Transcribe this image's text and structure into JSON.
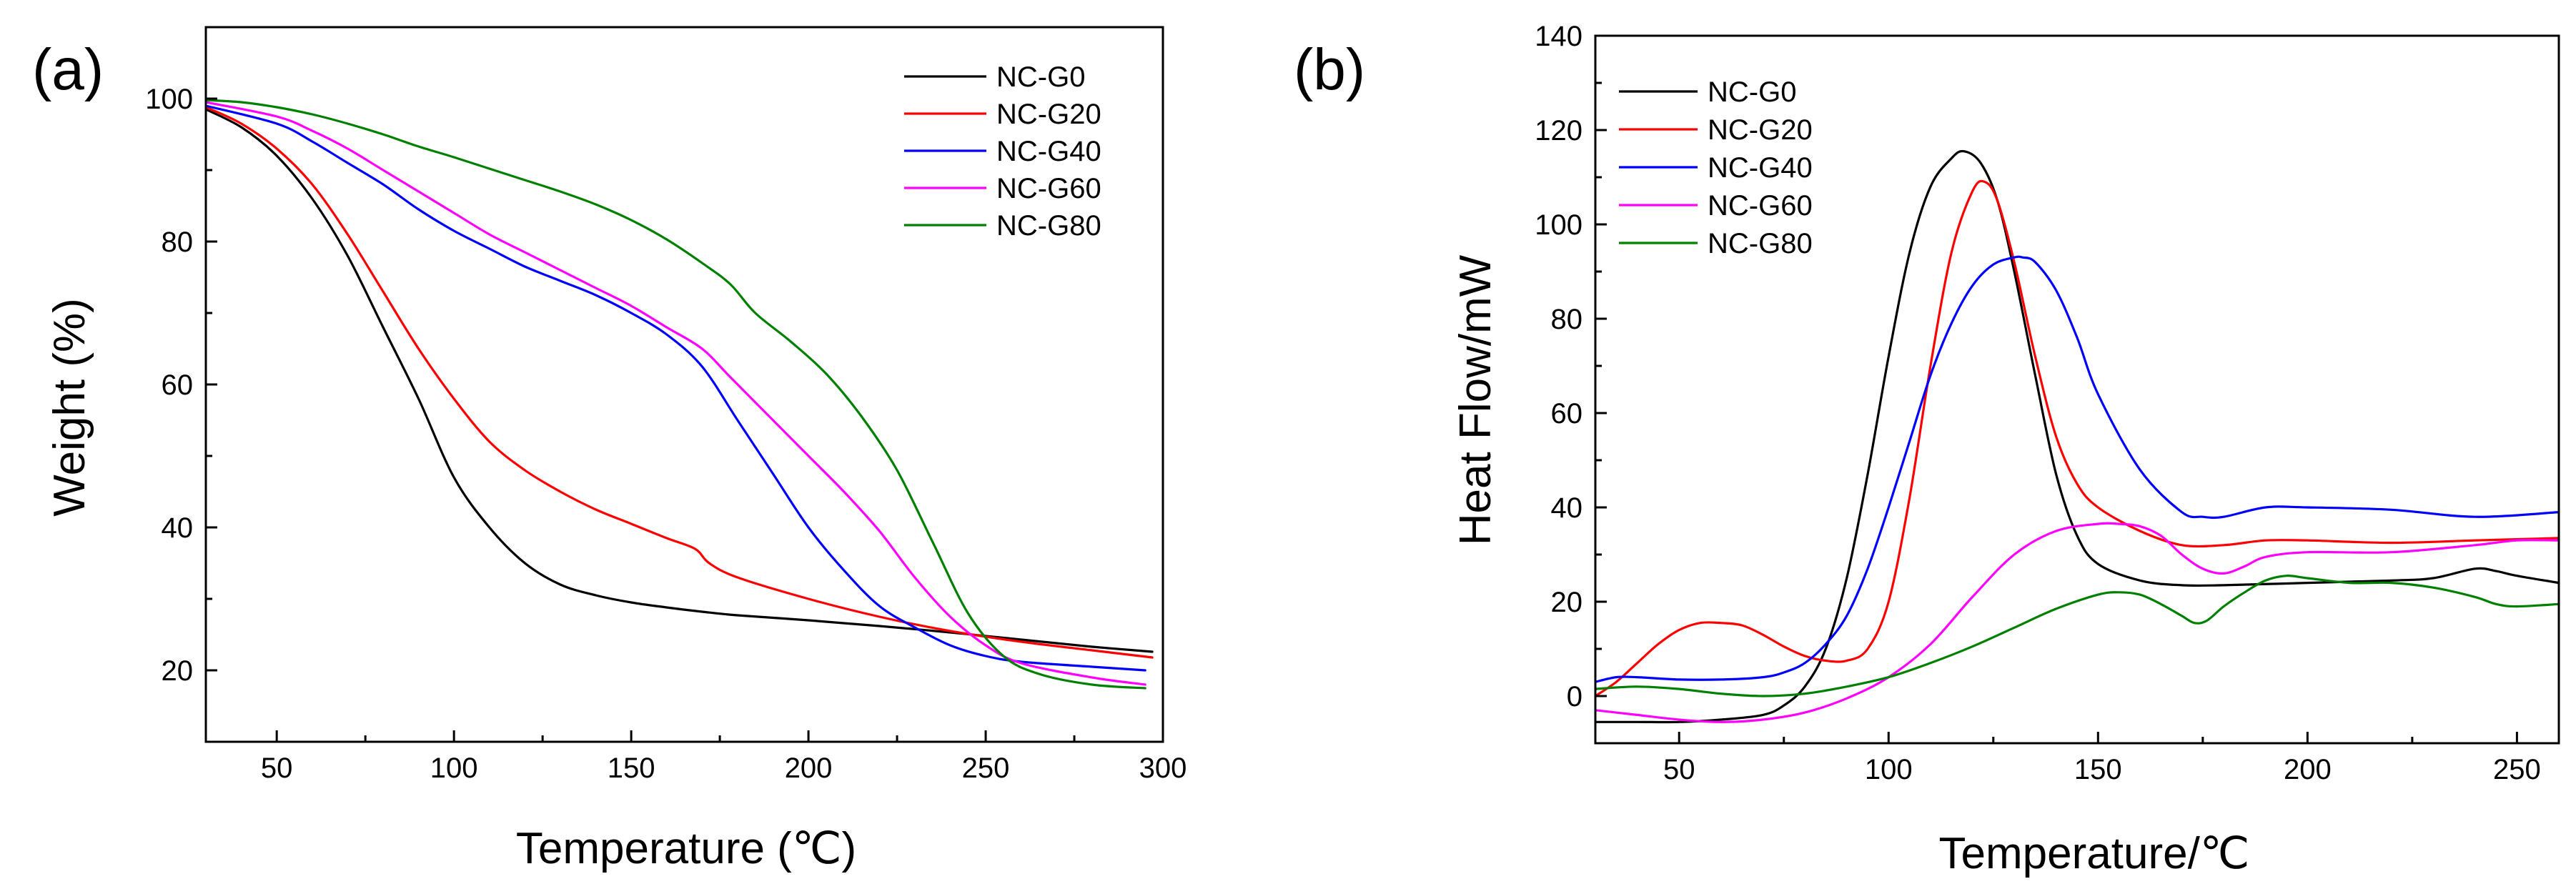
{
  "chart_data": [
    {
      "type": "line",
      "panel_label": "(a)",
      "title": "",
      "xlabel": "Temperature (℃)",
      "ylabel": "Weight (%)",
      "xlim": [
        30,
        300
      ],
      "ylim": [
        10,
        110
      ],
      "xticks": [
        50,
        100,
        150,
        200,
        250,
        300
      ],
      "yticks": [
        20,
        40,
        60,
        80,
        100
      ],
      "legend_position": "top-right",
      "series": [
        {
          "name": "NC-G0",
          "color": "#000000",
          "x": [
            30,
            40,
            50,
            60,
            70,
            80,
            90,
            100,
            110,
            120,
            130,
            140,
            150,
            160,
            170,
            180,
            200,
            220,
            240,
            260,
            280,
            297
          ],
          "y": [
            98.5,
            96,
            92,
            86,
            78,
            68,
            58,
            47,
            40,
            35,
            32,
            30.5,
            29.5,
            28.8,
            28.2,
            27.7,
            27,
            26.2,
            25.3,
            24.3,
            23.3,
            22.6
          ]
        },
        {
          "name": "NC-G20",
          "color": "#ff0000",
          "x": [
            30,
            40,
            50,
            60,
            70,
            80,
            90,
            100,
            110,
            120,
            130,
            140,
            150,
            160,
            168,
            172,
            180,
            200,
            220,
            240,
            260,
            280,
            297
          ],
          "y": [
            98.8,
            96.5,
            93,
            88,
            81,
            73,
            65,
            58,
            52,
            48,
            45,
            42.5,
            40.5,
            38.5,
            37,
            35,
            33,
            30,
            27.5,
            25.5,
            24,
            22.8,
            21.8
          ]
        },
        {
          "name": "NC-G40",
          "color": "#0000ff",
          "x": [
            30,
            50,
            60,
            70,
            80,
            90,
            100,
            110,
            120,
            130,
            140,
            150,
            160,
            170,
            180,
            190,
            200,
            210,
            220,
            230,
            240,
            250,
            260,
            280,
            295
          ],
          "y": [
            99,
            96.5,
            94,
            91,
            88,
            84.5,
            81.5,
            79,
            76.5,
            74.5,
            72.5,
            70,
            67,
            62.5,
            55,
            47.5,
            40,
            34,
            29,
            26,
            23.5,
            22,
            21.2,
            20.5,
            20
          ]
        },
        {
          "name": "NC-G60",
          "color": "#ff00ff",
          "x": [
            30,
            50,
            60,
            70,
            80,
            90,
            100,
            110,
            120,
            130,
            140,
            150,
            160,
            170,
            178,
            190,
            200,
            210,
            220,
            230,
            240,
            250,
            260,
            280,
            295
          ],
          "y": [
            99.5,
            97.5,
            95.5,
            93,
            90,
            87,
            84,
            81,
            78.5,
            76,
            73.5,
            71,
            68,
            65,
            61,
            55,
            50,
            45,
            39.5,
            33,
            27.5,
            23.5,
            21,
            19,
            18
          ]
        },
        {
          "name": "NC-G80",
          "color": "#008000",
          "x": [
            30,
            40,
            50,
            60,
            70,
            80,
            90,
            100,
            110,
            120,
            130,
            140,
            150,
            160,
            170,
            178,
            185,
            195,
            205,
            215,
            225,
            235,
            245,
            255,
            265,
            280,
            295
          ],
          "y": [
            99.8,
            99.5,
            98.8,
            97.8,
            96.5,
            95,
            93.3,
            91.8,
            90.2,
            88.6,
            87,
            85.2,
            83,
            80.3,
            77,
            74,
            70,
            66,
            61.5,
            55.5,
            48,
            38,
            28,
            22,
            19.5,
            18,
            17.5
          ]
        }
      ]
    },
    {
      "type": "line",
      "panel_label": "(b)",
      "title": "",
      "xlabel": "Temperature/℃",
      "ylabel": "Heat Flow/mW",
      "xlim": [
        30,
        260
      ],
      "ylim": [
        -10,
        140
      ],
      "xticks": [
        50,
        100,
        150,
        200,
        250
      ],
      "yticks": [
        0,
        20,
        40,
        60,
        80,
        100,
        120,
        140
      ],
      "legend_position": "top-left",
      "series": [
        {
          "name": "NC-G0",
          "color": "#000000",
          "x": [
            30,
            40,
            50,
            60,
            70,
            75,
            80,
            85,
            90,
            95,
            100,
            105,
            110,
            115,
            118,
            122,
            126,
            130,
            135,
            140,
            145,
            150,
            160,
            170,
            180,
            200,
            220,
            230,
            240,
            245,
            250,
            260
          ],
          "y": [
            -5.5,
            -5.5,
            -5.5,
            -5,
            -4,
            -2,
            2,
            10,
            25,
            47,
            72,
            94,
            108,
            114,
            115.5,
            113,
            105,
            90,
            68,
            47,
            34,
            28,
            24.5,
            23.5,
            23.5,
            24,
            24.5,
            25,
            27,
            26.5,
            25.5,
            24
          ]
        },
        {
          "name": "NC-G20",
          "color": "#ff0000",
          "x": [
            30,
            35,
            40,
            45,
            50,
            55,
            60,
            65,
            70,
            75,
            80,
            85,
            90,
            95,
            100,
            105,
            110,
            115,
            120,
            123,
            126,
            130,
            135,
            140,
            145,
            150,
            160,
            170,
            180,
            190,
            200,
            220,
            240,
            260
          ],
          "y": [
            0,
            3,
            7,
            11,
            14,
            15.5,
            15.5,
            15,
            13,
            10.5,
            8.5,
            7.5,
            7.5,
            10,
            20,
            42,
            70,
            94,
            107,
            109,
            105,
            92,
            72,
            55,
            45,
            40,
            35,
            32,
            32,
            33,
            33,
            32.5,
            33,
            33.5
          ]
        },
        {
          "name": "NC-G40",
          "color": "#0000ff",
          "x": [
            30,
            35,
            40,
            50,
            60,
            70,
            75,
            80,
            85,
            90,
            95,
            100,
            105,
            110,
            115,
            120,
            125,
            130,
            132,
            135,
            140,
            145,
            150,
            160,
            170,
            175,
            180,
            190,
            200,
            220,
            240,
            260
          ],
          "y": [
            3,
            4,
            4,
            3.5,
            3.5,
            4,
            5,
            7,
            11,
            17,
            27,
            40,
            54,
            68,
            79,
            87,
            91.5,
            93,
            93,
            92,
            86,
            76,
            64,
            48,
            39,
            38,
            38,
            40,
            40,
            39.5,
            38,
            39
          ]
        },
        {
          "name": "NC-G60",
          "color": "#ff00ff",
          "x": [
            30,
            40,
            50,
            60,
            70,
            80,
            90,
            100,
            110,
            120,
            130,
            140,
            150,
            155,
            160,
            165,
            170,
            175,
            180,
            185,
            190,
            200,
            220,
            240,
            250,
            260
          ],
          "y": [
            -3,
            -4,
            -5,
            -5.5,
            -5,
            -3.5,
            -0.5,
            4,
            11,
            21,
            30,
            35,
            36.5,
            36.5,
            36,
            34,
            30,
            27,
            26,
            27.5,
            29.5,
            30.5,
            30.5,
            32,
            33,
            33
          ]
        },
        {
          "name": "NC-G80",
          "color": "#008000",
          "x": [
            30,
            40,
            50,
            60,
            70,
            80,
            90,
            100,
            110,
            120,
            130,
            140,
            150,
            155,
            160,
            165,
            170,
            173,
            176,
            180,
            185,
            190,
            195,
            200,
            210,
            220,
            230,
            240,
            245,
            250,
            260
          ],
          "y": [
            1.5,
            2,
            1.5,
            0.5,
            0,
            0.5,
            2,
            4,
            7,
            10.5,
            14.5,
            18.5,
            21.5,
            22,
            21.5,
            19.5,
            17,
            15.5,
            16,
            19,
            22,
            24.5,
            25.5,
            25,
            24,
            24,
            23,
            21,
            19.5,
            19,
            19.5
          ]
        }
      ]
    }
  ]
}
